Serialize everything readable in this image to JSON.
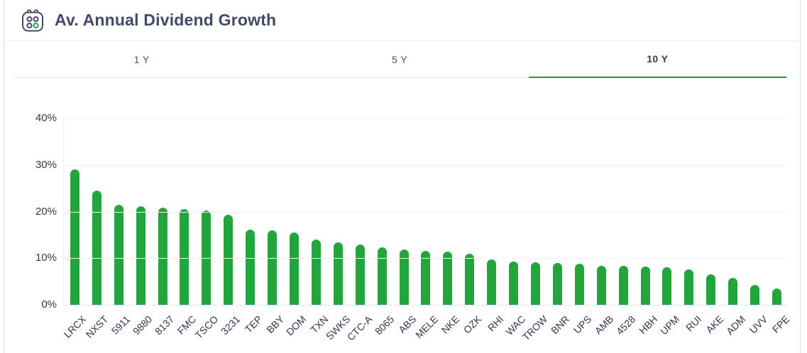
{
  "header": {
    "title": "Av. Annual Dividend Growth",
    "icon": "calendar-dots-icon"
  },
  "tabs": [
    {
      "label": "1 Y",
      "active": false
    },
    {
      "label": "5 Y",
      "active": false
    },
    {
      "label": "10 Y",
      "active": true
    }
  ],
  "colors": {
    "bar_green": "#23a53e",
    "active_tab_underline": "#219a44",
    "title_text": "#414a67",
    "axis_text": "#2f3850"
  },
  "chart_data": {
    "type": "bar",
    "title": "Av. Annual Dividend Growth",
    "xlabel": "",
    "ylabel": "",
    "ylim": [
      0,
      40
    ],
    "grid": true,
    "bar_color": "#23a53e",
    "y_ticks": [
      {
        "label": "40%",
        "value": 40
      },
      {
        "label": "30%",
        "value": 30
      },
      {
        "label": "20%",
        "value": 20
      },
      {
        "label": "10%",
        "value": 10
      },
      {
        "label": "0%",
        "value": 0
      }
    ],
    "categories": [
      "LRCX",
      "NXST",
      "5911",
      "9880",
      "8137",
      "FMC",
      "TSCO",
      "3231",
      "TEP",
      "BBY",
      "DOM",
      "TXN",
      "SWKS",
      "CTC-A",
      "8065",
      "ABS",
      "MELE",
      "NKE",
      "OZK",
      "RHI",
      "WAC",
      "TROW",
      "BNR",
      "UPS",
      "AMB",
      "4528",
      "HBH",
      "UPM",
      "RUI",
      "AKE",
      "ADM",
      "UVV",
      "FPE"
    ],
    "values": [
      29.0,
      24.5,
      21.5,
      21.1,
      20.9,
      20.5,
      20.2,
      19.3,
      16.2,
      16.0,
      15.5,
      14.0,
      13.4,
      12.9,
      12.3,
      11.8,
      11.6,
      11.4,
      11.0,
      9.8,
      9.3,
      9.1,
      8.9,
      8.8,
      8.4,
      8.3,
      8.2,
      8.1,
      7.6,
      6.6,
      5.8,
      4.3,
      3.5
    ]
  }
}
